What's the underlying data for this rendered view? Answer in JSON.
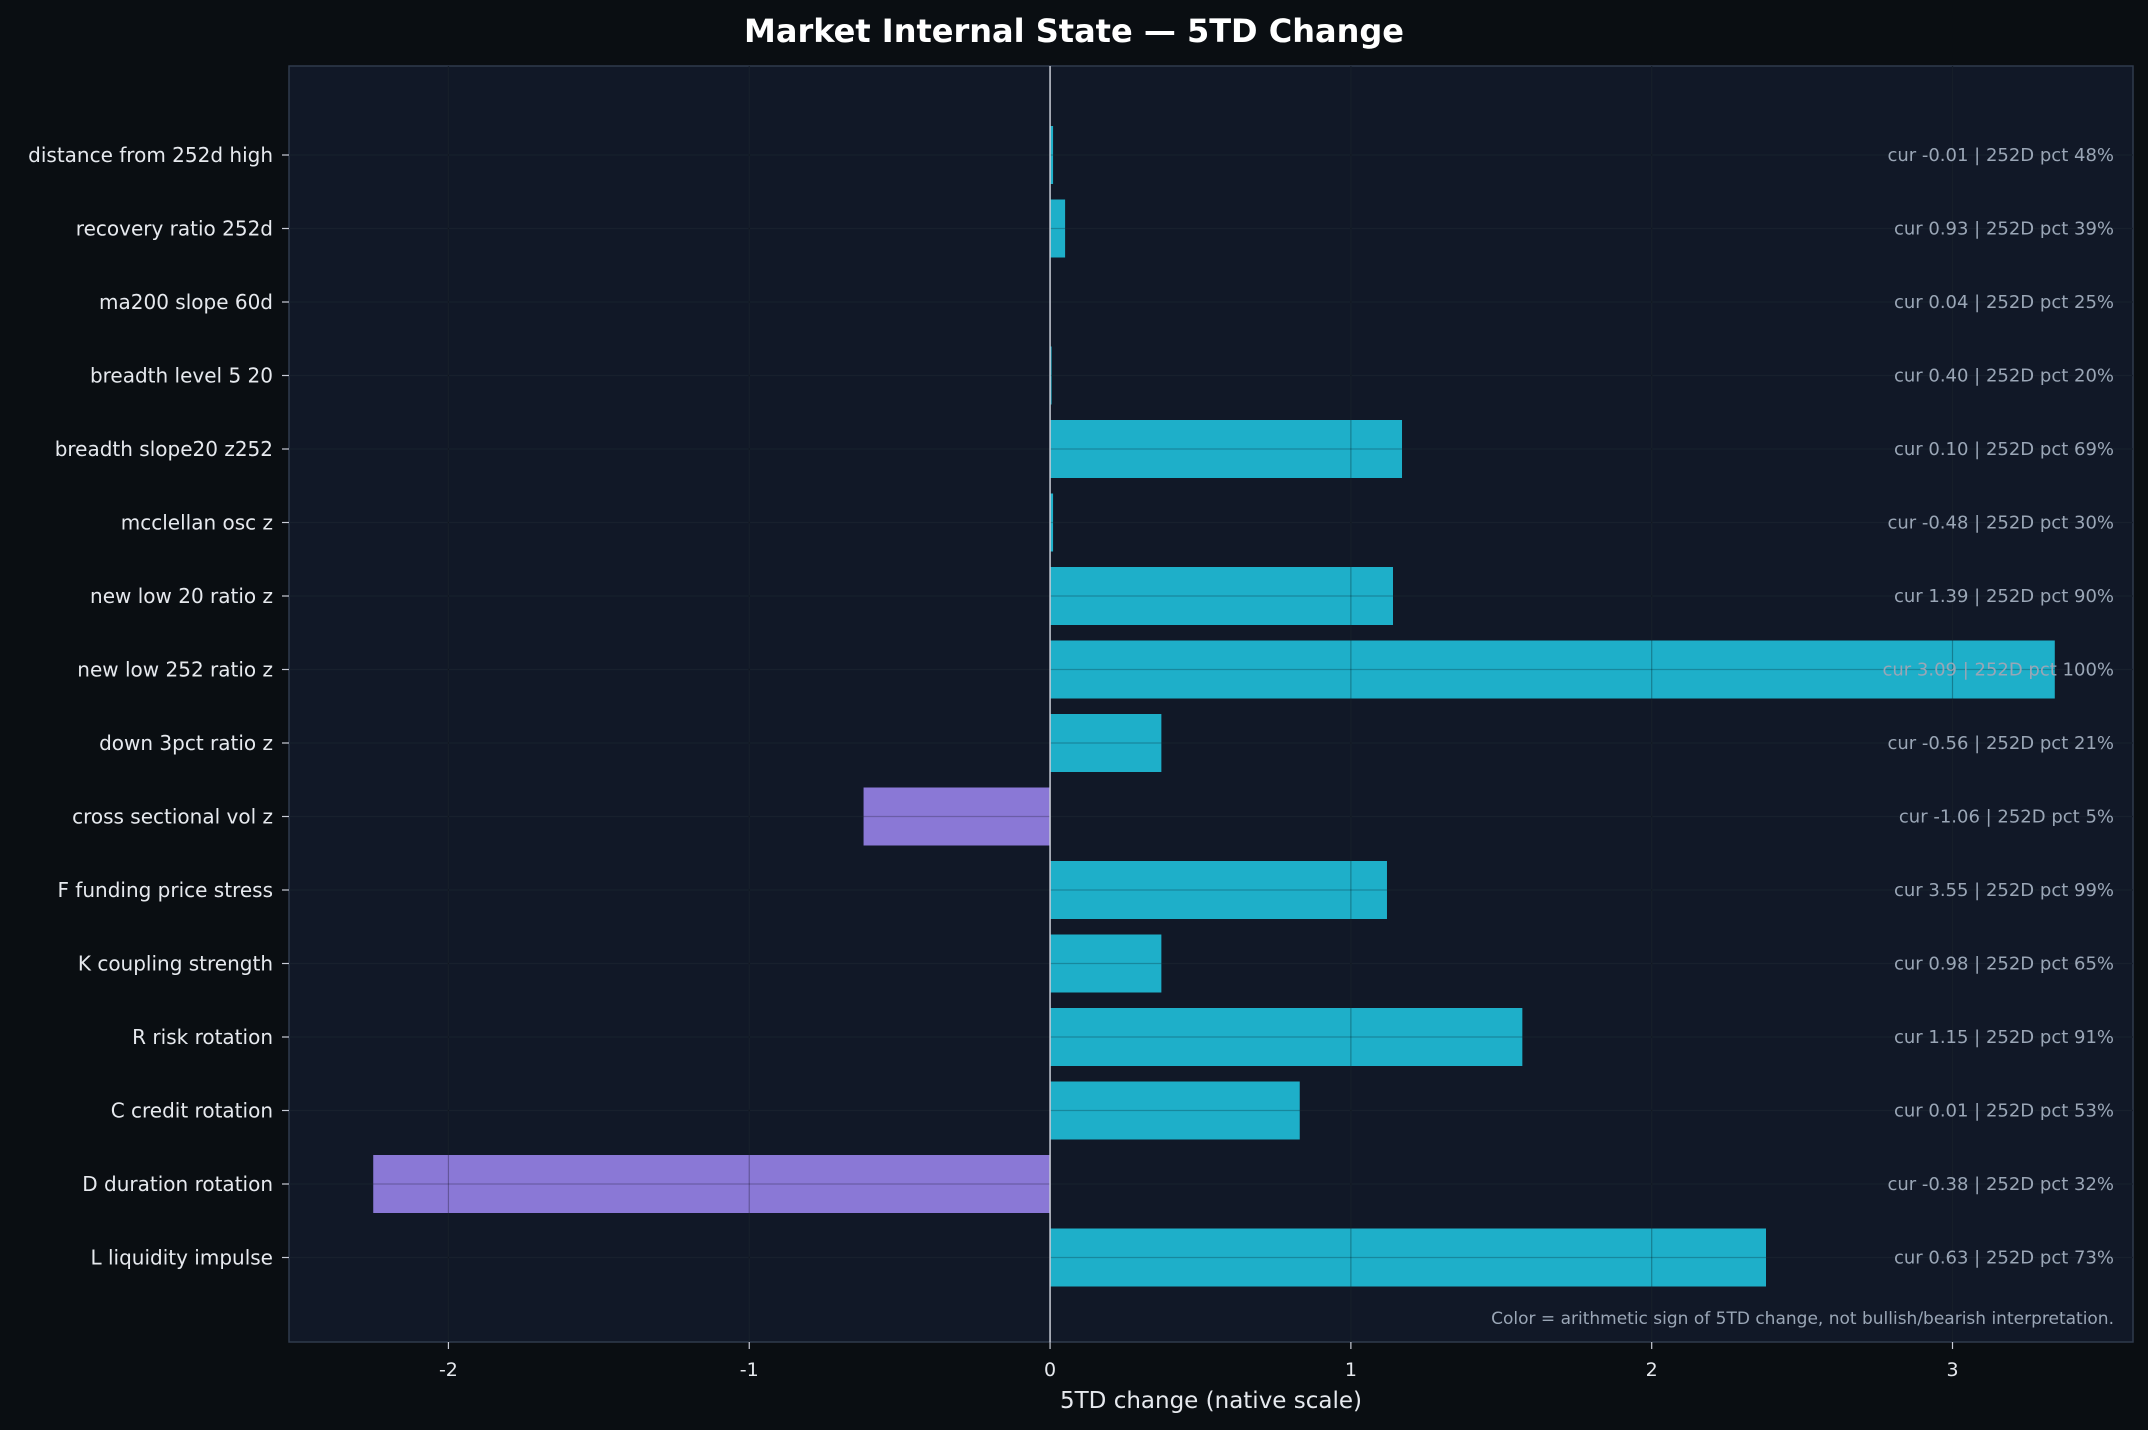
{
  "chart_data": {
    "type": "bar",
    "orientation": "horizontal",
    "title": "Market Internal State — 5TD Change",
    "xlabel": "5TD change (native scale)",
    "ylabel": "",
    "xlim": [
      -2.53,
      3.6
    ],
    "xticks": [
      -2,
      -1,
      0,
      1,
      2,
      3
    ],
    "grid": true,
    "categories": [
      "distance from 252d high",
      "recovery ratio 252d",
      "ma200 slope 60d",
      "breadth level 5 20",
      "breadth slope20 z252",
      "mcclellan osc z",
      "new low 20 ratio z",
      "new low 252 ratio z",
      "down 3pct ratio z",
      "cross sectional vol z",
      "F funding price stress",
      "K coupling strength",
      "R risk rotation",
      "C credit rotation",
      "D duration rotation",
      "L liquidity impulse"
    ],
    "values": [
      0.01,
      0.05,
      0.0,
      0.005,
      1.17,
      0.01,
      1.14,
      3.34,
      0.37,
      -0.62,
      1.12,
      0.37,
      1.57,
      0.83,
      -2.25,
      2.38
    ],
    "annotations": [
      "cur -0.01 | 252D pct 48%",
      "cur 0.93 | 252D pct 39%",
      "cur 0.04 | 252D pct 25%",
      "cur 0.40 | 252D pct 20%",
      "cur 0.10 | 252D pct 69%",
      "cur -0.48 | 252D pct 30%",
      "cur 1.39 | 252D pct 90%",
      "cur 3.09 | 252D pct 100%",
      "cur -0.56 | 252D pct 21%",
      "cur -1.06 | 252D pct 5%",
      "cur 3.55 | 252D pct 99%",
      "cur 0.98 | 252D pct 65%",
      "cur 1.15 | 252D pct 91%",
      "cur 0.01 | 252D pct 53%",
      "cur -0.38 | 252D pct 32%",
      "cur 0.63 | 252D pct 73%"
    ],
    "footnote": "Color = arithmetic sign of 5TD change, not bullish/bearish interpretation.",
    "colors": {
      "positive": "#1eafc9",
      "negative": "#8a78d6",
      "figure_bg": "#0a0e12",
      "plot_bg": "#111827",
      "grid": "#1f2a3a",
      "zero_line": "#c8ccd6",
      "text": "#e6e9ee",
      "annotation": "#9aa6b6"
    }
  }
}
